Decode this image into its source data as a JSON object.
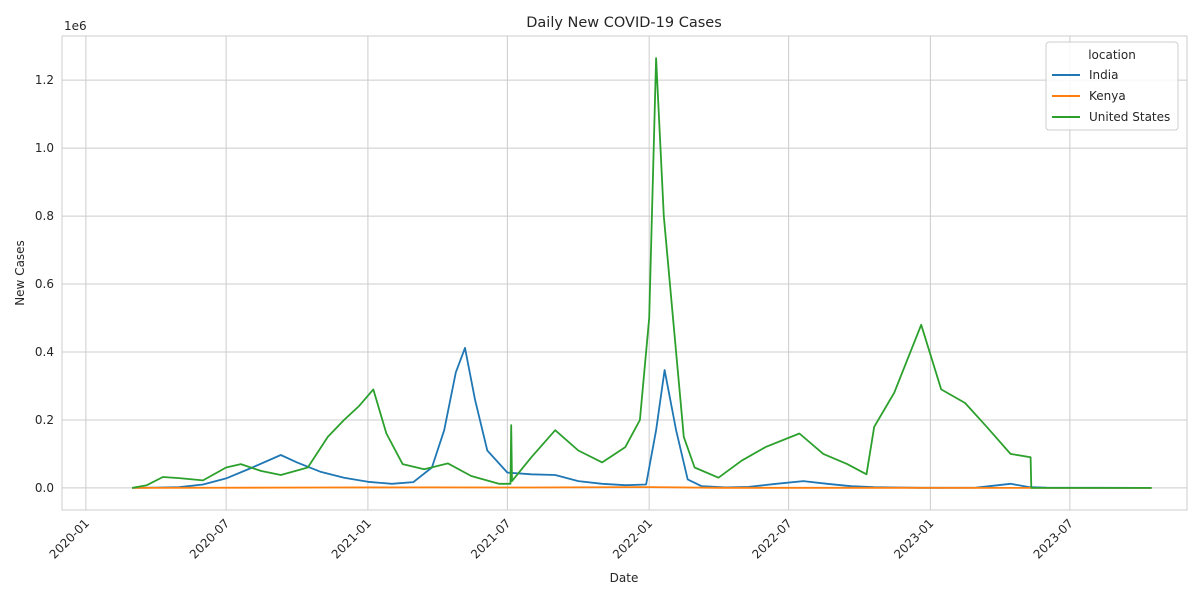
{
  "chart_data": {
    "type": "line",
    "title": "Daily New COVID-19 Cases",
    "xlabel": "Date",
    "ylabel": "New Cases",
    "y_offset_label": "1e6",
    "x_range": [
      "2019-12-01",
      "2023-11-30"
    ],
    "ylim": [
      -65000,
      1330000
    ],
    "x_ticks": [
      "2020-01",
      "2020-07",
      "2021-01",
      "2021-07",
      "2022-01",
      "2022-07",
      "2023-01",
      "2023-07"
    ],
    "y_ticks": [
      0.0,
      0.2,
      0.4,
      0.6,
      0.8,
      1.0,
      1.2
    ],
    "grid": true,
    "legend": {
      "title": "location",
      "position": "top-right"
    },
    "series": [
      {
        "name": "India",
        "color": "#1f77b4",
        "points": [
          [
            "2020-03-01",
            0
          ],
          [
            "2020-04-01",
            1000
          ],
          [
            "2020-05-01",
            2000
          ],
          [
            "2020-06-01",
            10000
          ],
          [
            "2020-07-01",
            28000
          ],
          [
            "2020-08-01",
            57000
          ],
          [
            "2020-09-10",
            97000
          ],
          [
            "2020-10-01",
            75000
          ],
          [
            "2020-11-01",
            47000
          ],
          [
            "2020-12-01",
            30000
          ],
          [
            "2021-01-01",
            18000
          ],
          [
            "2021-02-01",
            12000
          ],
          [
            "2021-03-01",
            17000
          ],
          [
            "2021-03-25",
            60000
          ],
          [
            "2021-04-10",
            170000
          ],
          [
            "2021-04-25",
            340000
          ],
          [
            "2021-05-07",
            412000
          ],
          [
            "2021-05-20",
            260000
          ],
          [
            "2021-06-05",
            110000
          ],
          [
            "2021-07-01",
            45000
          ],
          [
            "2021-08-01",
            40000
          ],
          [
            "2021-09-01",
            38000
          ],
          [
            "2021-10-01",
            20000
          ],
          [
            "2021-11-01",
            12000
          ],
          [
            "2021-12-01",
            8000
          ],
          [
            "2021-12-28",
            10000
          ],
          [
            "2022-01-10",
            170000
          ],
          [
            "2022-01-21",
            347000
          ],
          [
            "2022-02-05",
            170000
          ],
          [
            "2022-02-20",
            25000
          ],
          [
            "2022-03-10",
            5000
          ],
          [
            "2022-04-10",
            1500
          ],
          [
            "2022-05-10",
            3000
          ],
          [
            "2022-06-15",
            12000
          ],
          [
            "2022-07-20",
            20000
          ],
          [
            "2022-08-20",
            12000
          ],
          [
            "2022-09-20",
            5000
          ],
          [
            "2022-10-20",
            2000
          ],
          [
            "2022-12-20",
            200
          ],
          [
            "2023-03-01",
            500
          ],
          [
            "2023-04-15",
            12000
          ],
          [
            "2023-05-10",
            2000
          ],
          [
            "2023-06-01",
            500
          ],
          [
            "2023-10-15",
            0
          ]
        ]
      },
      {
        "name": "Kenya",
        "color": "#ff7f0e",
        "points": [
          [
            "2020-03-01",
            0
          ],
          [
            "2020-08-01",
            500
          ],
          [
            "2020-11-01",
            1200
          ],
          [
            "2021-03-20",
            1500
          ],
          [
            "2021-08-01",
            1200
          ],
          [
            "2022-01-05",
            2500
          ],
          [
            "2022-04-01",
            200
          ],
          [
            "2022-07-01",
            300
          ],
          [
            "2023-10-15",
            0
          ]
        ]
      },
      {
        "name": "United States",
        "color": "#2ca02c",
        "points": [
          [
            "2020-03-01",
            0
          ],
          [
            "2020-03-20",
            8000
          ],
          [
            "2020-04-10",
            32000
          ],
          [
            "2020-05-01",
            29000
          ],
          [
            "2020-06-01",
            22000
          ],
          [
            "2020-07-01",
            60000
          ],
          [
            "2020-07-20",
            70000
          ],
          [
            "2020-08-15",
            50000
          ],
          [
            "2020-09-10",
            38000
          ],
          [
            "2020-10-15",
            60000
          ],
          [
            "2020-11-10",
            150000
          ],
          [
            "2020-12-01",
            200000
          ],
          [
            "2020-12-20",
            240000
          ],
          [
            "2021-01-08",
            290000
          ],
          [
            "2021-01-25",
            160000
          ],
          [
            "2021-02-15",
            70000
          ],
          [
            "2021-03-15",
            55000
          ],
          [
            "2021-04-15",
            72000
          ],
          [
            "2021-05-15",
            35000
          ],
          [
            "2021-06-20",
            12000
          ],
          [
            "2021-07-05",
            12000
          ],
          [
            "2021-07-06",
            185000
          ],
          [
            "2021-07-07",
            20000
          ],
          [
            "2021-08-01",
            90000
          ],
          [
            "2021-09-01",
            170000
          ],
          [
            "2021-10-01",
            110000
          ],
          [
            "2021-11-01",
            75000
          ],
          [
            "2021-12-01",
            120000
          ],
          [
            "2021-12-20",
            200000
          ],
          [
            "2022-01-01",
            500000
          ],
          [
            "2022-01-10",
            1265000
          ],
          [
            "2022-01-20",
            800000
          ],
          [
            "2022-02-01",
            500000
          ],
          [
            "2022-02-15",
            150000
          ],
          [
            "2022-03-01",
            60000
          ],
          [
            "2022-04-01",
            30000
          ],
          [
            "2022-05-01",
            80000
          ],
          [
            "2022-06-01",
            120000
          ],
          [
            "2022-07-15",
            160000
          ],
          [
            "2022-08-15",
            100000
          ],
          [
            "2022-09-15",
            70000
          ],
          [
            "2022-10-10",
            40000
          ],
          [
            "2022-10-20",
            180000
          ],
          [
            "2022-11-15",
            280000
          ],
          [
            "2022-12-20",
            480000
          ],
          [
            "2023-01-15",
            290000
          ],
          [
            "2023-02-15",
            250000
          ],
          [
            "2023-03-15",
            180000
          ],
          [
            "2023-04-15",
            100000
          ],
          [
            "2023-05-11",
            90000
          ],
          [
            "2023-05-12",
            0
          ],
          [
            "2023-10-15",
            0
          ]
        ]
      }
    ]
  }
}
